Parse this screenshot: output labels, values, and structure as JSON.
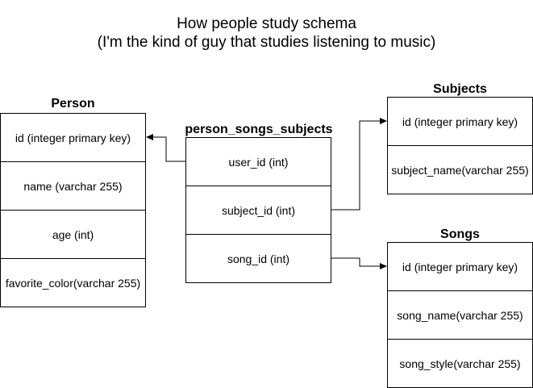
{
  "title": {
    "line1": "How people study schema",
    "line2": "(I'm the kind of guy that studies listening to music)"
  },
  "tables": {
    "person": {
      "name": "Person",
      "fields": [
        "id (integer primary key)",
        "name (varchar 255)",
        "age (int)",
        "favorite_color(varchar 255)"
      ]
    },
    "join": {
      "name": "person_songs_subjects",
      "fields": [
        "user_id (int)",
        "subject_id (int)",
        "song_id (int)"
      ]
    },
    "subjects": {
      "name": "Subjects",
      "fields": [
        "id (integer primary key)",
        "subject_name(varchar 255)"
      ]
    },
    "songs": {
      "name": "Songs",
      "fields": [
        "id (integer primary key)",
        "song_name(varchar 255)",
        "song_style(varchar 255)"
      ]
    }
  },
  "colors": {
    "line": "#000000",
    "background": "#ffffff"
  }
}
